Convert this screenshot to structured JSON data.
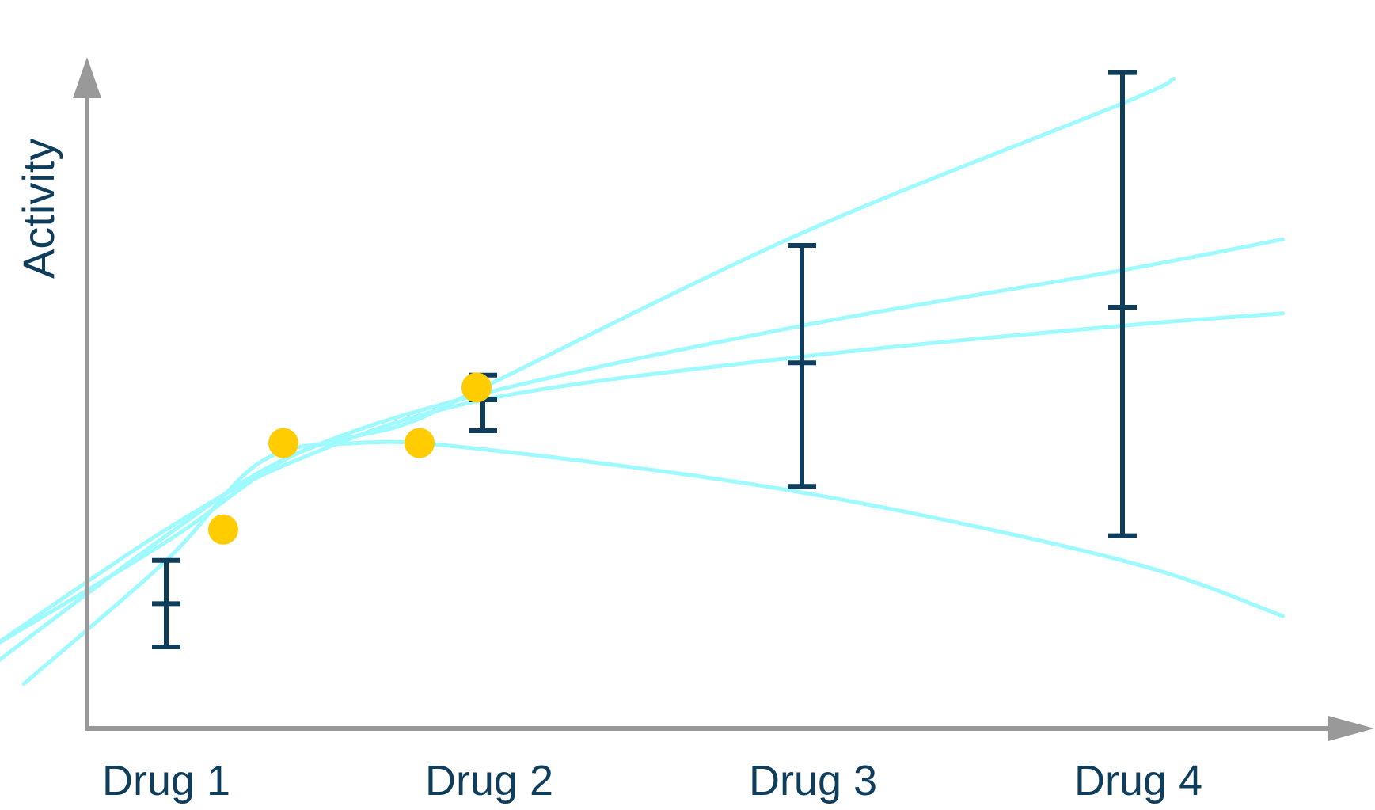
{
  "chart_data": {
    "type": "line",
    "title": "",
    "xlabel": "",
    "ylabel": "Activity",
    "categories": [
      "Drug 1",
      "Drug 2",
      "Drug 3",
      "Drug 4"
    ],
    "category_x": [
      1,
      2,
      3,
      4
    ],
    "xlim": [
      0.3,
      4.5
    ],
    "ylim": [
      0,
      100
    ],
    "grid": false,
    "legend": "none",
    "series": [
      {
        "values": [
          [
            0.45,
            10
          ],
          [
            1.0,
            27
          ],
          [
            1.4,
            41
          ],
          [
            1.75,
            46
          ],
          [
            2.0,
            52
          ],
          [
            3.0,
            77
          ],
          [
            4.0,
            98
          ],
          [
            4.16,
            102
          ]
        ]
      },
      {
        "values": [
          [
            0.45,
            7
          ],
          [
            1.0,
            28
          ],
          [
            1.4,
            41
          ],
          [
            2.0,
            51
          ],
          [
            3.0,
            62
          ],
          [
            4.0,
            71
          ],
          [
            4.5,
            76
          ]
        ]
      },
      {
        "values": [
          [
            0.45,
            10
          ],
          [
            1.0,
            29
          ],
          [
            1.4,
            40
          ],
          [
            2.0,
            50
          ],
          [
            3.0,
            57
          ],
          [
            4.0,
            62
          ],
          [
            4.5,
            64
          ]
        ]
      },
      {
        "values": [
          [
            0.55,
            4
          ],
          [
            1.0,
            24
          ],
          [
            1.3,
            40
          ],
          [
            1.6,
            43
          ],
          [
            2.0,
            42
          ],
          [
            3.0,
            35
          ],
          [
            4.0,
            24
          ],
          [
            4.5,
            15
          ]
        ]
      }
    ],
    "observed_points": [
      [
        1.18,
        29
      ],
      [
        1.37,
        43
      ],
      [
        1.8,
        43
      ],
      [
        1.98,
        52
      ]
    ],
    "error_bars": [
      {
        "category": "Drug 1",
        "x": 1,
        "mean": 17,
        "lower": 10,
        "upper": 24
      },
      {
        "category": "Drug 2",
        "x": 2,
        "mean": 50,
        "lower": 45,
        "upper": 54
      },
      {
        "category": "Drug 3",
        "x": 3,
        "mean": 56,
        "lower": 36,
        "upper": 75
      },
      {
        "category": "Drug 4",
        "x": 4,
        "mean": 65,
        "lower": 28,
        "upper": 103
      }
    ],
    "colors": {
      "curves": "#9ffaff",
      "points": "#ffcc00",
      "error_bars": "#0f3d5c",
      "axes": "#999999",
      "labels": "#0f3d5c"
    }
  }
}
